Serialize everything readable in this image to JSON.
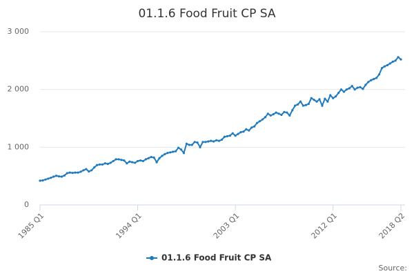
{
  "chart_data": {
    "type": "line",
    "title": "01.1.6 Food Fruit CP SA",
    "source": "Source:",
    "categories": [
      "1985 Q1",
      null,
      null,
      null,
      null,
      null,
      null,
      null,
      null,
      null,
      null,
      null,
      null,
      null,
      null,
      null,
      null,
      null,
      null,
      null,
      null,
      null,
      null,
      null,
      null,
      null,
      null,
      null,
      null,
      null,
      null,
      null,
      null,
      null,
      null,
      null,
      "1994 Q1",
      null,
      null,
      null,
      null,
      null,
      null,
      null,
      null,
      null,
      null,
      null,
      null,
      null,
      null,
      null,
      null,
      null,
      null,
      null,
      null,
      null,
      null,
      null,
      null,
      null,
      null,
      null,
      null,
      null,
      null,
      null,
      null,
      null,
      null,
      null,
      "2003 Q1",
      null,
      null,
      null,
      null,
      null,
      null,
      null,
      null,
      null,
      null,
      null,
      null,
      null,
      null,
      null,
      null,
      null,
      null,
      null,
      null,
      null,
      null,
      null,
      null,
      null,
      null,
      null,
      null,
      null,
      null,
      null,
      null,
      null,
      null,
      null,
      "2012 Q1",
      null,
      null,
      null,
      null,
      null,
      null,
      null,
      null,
      null,
      null,
      null,
      null,
      null,
      null,
      null,
      null,
      null,
      null,
      null,
      null,
      null,
      null,
      null,
      null,
      "2018 Q2"
    ],
    "series": [
      {
        "name": "01.1.6 Food Fruit CP SA",
        "color": "#1f7bbf",
        "values": [
          420,
          425,
          440,
          455,
          470,
          490,
          505,
          495,
          490,
          510,
          550,
          560,
          555,
          560,
          560,
          575,
          600,
          620,
          580,
          600,
          650,
          690,
          700,
          700,
          720,
          710,
          730,
          760,
          790,
          790,
          780,
          770,
          720,
          750,
          740,
          730,
          760,
          770,
          760,
          790,
          810,
          830,
          820,
          740,
          810,
          850,
          880,
          900,
          910,
          920,
          930,
          990,
          960,
          900,
          1060,
          1040,
          1040,
          1090,
          1080,
          1000,
          1090,
          1090,
          1100,
          1110,
          1100,
          1120,
          1110,
          1130,
          1180,
          1190,
          1200,
          1240,
          1200,
          1230,
          1260,
          1270,
          1310,
          1290,
          1340,
          1360,
          1420,
          1450,
          1480,
          1520,
          1580,
          1550,
          1570,
          1600,
          1580,
          1560,
          1610,
          1600,
          1550,
          1640,
          1720,
          1740,
          1790,
          1720,
          1730,
          1750,
          1850,
          1820,
          1790,
          1830,
          1720,
          1840,
          1790,
          1900,
          1850,
          1880,
          1940,
          2000,
          1960,
          2000,
          2020,
          2060,
          2000,
          2030,
          2040,
          2010,
          2080,
          2130,
          2160,
          2180,
          2200,
          2260,
          2370,
          2400,
          2420,
          2450,
          2480,
          2500,
          2560,
          2520
        ]
      }
    ],
    "ylim": [
      0,
      3000
    ],
    "yticks": [
      0,
      {
        "value": 1000,
        "label": "1 000"
      },
      {
        "value": 2000,
        "label": "2 000"
      },
      {
        "value": 3000,
        "label": "3 000"
      }
    ],
    "grid": true
  }
}
